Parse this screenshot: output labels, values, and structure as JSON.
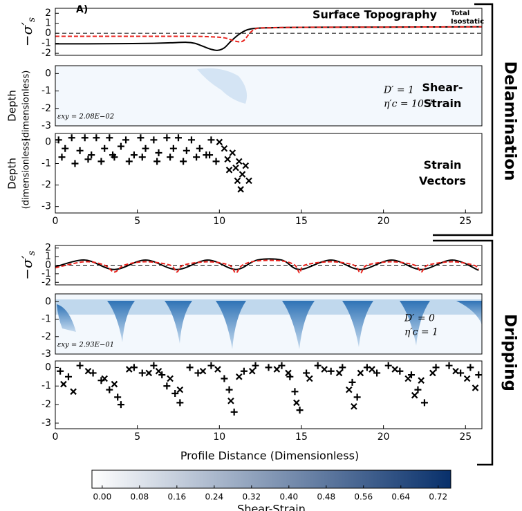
{
  "figure": {
    "panel_label": "A)",
    "x_label": "Profile Distance (Dimensionless)",
    "groups": [
      "Delamination",
      "Dripping"
    ]
  },
  "chart_data": [
    {
      "type": "line",
      "title": "Surface Topography",
      "y_label": "−σ′",
      "y_label_sub": "s",
      "xlim": [
        0,
        26
      ],
      "ylim": [
        -2.2,
        2.5
      ],
      "yticks": [
        -2,
        -1,
        0,
        1,
        2
      ],
      "reference_line": 0,
      "series": [
        {
          "name": "Total",
          "color": "#000000",
          "dash": false,
          "x": [
            0,
            2,
            4,
            6,
            7,
            8,
            8.5,
            9,
            9.5,
            9.9,
            10.3,
            10.7,
            11.2,
            11.7,
            12.2,
            13,
            15,
            20,
            26
          ],
          "values": [
            -1.05,
            -1.05,
            -1.03,
            -1.0,
            -0.95,
            -0.9,
            -1.0,
            -1.3,
            -1.6,
            -1.7,
            -1.45,
            -0.8,
            -0.1,
            0.35,
            0.5,
            0.55,
            0.6,
            0.62,
            0.65
          ]
        },
        {
          "name": "Isostatic",
          "color": "#e8221c",
          "dash": true,
          "x": [
            0,
            4,
            8,
            9.5,
            10.3,
            10.8,
            11.2,
            11.5,
            11.9,
            12.3,
            13,
            15,
            20,
            26
          ],
          "values": [
            -0.3,
            -0.3,
            -0.3,
            -0.35,
            -0.45,
            -0.7,
            -0.85,
            -0.7,
            0.1,
            0.5,
            0.55,
            0.6,
            0.62,
            0.65
          ]
        }
      ]
    },
    {
      "type": "heatmap",
      "y_label": [
        "Depth",
        "(dimensionless)"
      ],
      "xlim": [
        0,
        26
      ],
      "ylim": [
        -3,
        0.45
      ],
      "yticks": [
        -3,
        -2,
        -1,
        0
      ],
      "annotations": [
        "Shear-",
        "Strain"
      ],
      "params": [
        "D′ = 1",
        "η′c = 10⁻²"
      ],
      "max_label": "εxy = 2.08E−02"
    },
    {
      "type": "scatter",
      "y_label": [
        "Depth",
        "(dimensionless)"
      ],
      "xlim": [
        0,
        26
      ],
      "ylim": [
        -3.3,
        0.4
      ],
      "yticks": [
        -3,
        -2,
        -1,
        0
      ],
      "xticks": [
        0,
        5,
        10,
        15,
        20,
        25
      ],
      "annotations": [
        "Strain",
        "Vectors"
      ],
      "markers": [
        {
          "symbol": "plus",
          "x": [
            0.2,
            0.4,
            1,
            1.5,
            1.8,
            2.2,
            2.5,
            3,
            3.3,
            3.5,
            4,
            4.3,
            4.8,
            5.2,
            5.5,
            6,
            6.3,
            6.8,
            7.2,
            7.5,
            8,
            8.3,
            8.8,
            9.2,
            9.5,
            9.8,
            0.6,
            1.2,
            2,
            2.8,
            3.6,
            4.5,
            5.3,
            6.2,
            7,
            7.8,
            8.6,
            9.4
          ],
          "y": [
            0.1,
            -0.7,
            0.2,
            -0.4,
            0.2,
            -0.6,
            0.2,
            -0.3,
            0.2,
            -0.6,
            -0.2,
            0.1,
            -0.6,
            0.2,
            -0.3,
            0.1,
            -0.5,
            0.2,
            -0.3,
            0.2,
            -0.4,
            0.1,
            -0.3,
            -0.6,
            0.1,
            -0.9,
            -0.3,
            -1.0,
            -0.8,
            -0.9,
            -0.7,
            -0.9,
            -0.7,
            -0.9,
            -0.7,
            -0.9,
            -0.7,
            -0.6
          ]
        },
        {
          "symbol": "cross",
          "x": [
            10,
            10.3,
            10.5,
            10.8,
            11,
            11.2,
            11.4,
            11.6,
            10.6,
            11.1,
            11.3,
            11.8
          ],
          "y": [
            0,
            -0.3,
            -0.8,
            -0.5,
            -1.2,
            -0.9,
            -1.5,
            -1.1,
            -1.3,
            -1.8,
            -2.2,
            -1.8
          ]
        }
      ]
    },
    {
      "type": "line",
      "xlim": [
        0,
        26
      ],
      "ylim": [
        -2.3,
        2.3
      ],
      "yticks": [
        -2,
        -1,
        0,
        1,
        2
      ],
      "y_label": "−σ′",
      "y_label_sub": "s",
      "reference_line": 0,
      "series": [
        {
          "color": "#000000",
          "dash": false,
          "x": [
            0,
            1.8,
            3.6,
            5.5,
            7.4,
            9.3,
            11,
            12.3,
            13.8,
            14.9,
            16.8,
            18.6,
            20.5,
            22.3,
            24.2,
            25.8
          ],
          "values": [
            -0.2,
            0.6,
            -0.5,
            0.6,
            -0.5,
            0.6,
            -0.5,
            0.6,
            0.6,
            -0.5,
            0.6,
            -0.5,
            0.6,
            -0.5,
            0.6,
            -0.6
          ]
        },
        {
          "color": "#e8221c",
          "dash": true,
          "x": [
            0,
            1.8,
            3,
            3.6,
            4.2,
            5.5,
            7,
            7.4,
            7.8,
            9.3,
            10.6,
            11,
            11.4,
            12.3,
            13.8,
            14.6,
            14.9,
            15.2,
            16.8,
            18.2,
            18.6,
            19,
            20.5,
            21.9,
            22.3,
            22.7,
            24.2,
            25.5,
            25.8
          ],
          "values": [
            -0.3,
            0.4,
            0,
            -0.8,
            0,
            0.4,
            0,
            -0.8,
            0,
            0.4,
            0,
            -0.9,
            0,
            0.5,
            0.5,
            0,
            -0.9,
            0,
            0.4,
            0,
            -0.9,
            0,
            0.4,
            0,
            -0.8,
            0,
            0.4,
            0,
            -0.5
          ]
        }
      ]
    },
    {
      "type": "heatmap",
      "xlim": [
        0,
        26
      ],
      "ylim": [
        -3,
        0.45
      ],
      "yticks": [
        -3,
        -2,
        -1,
        0
      ],
      "params": [
        "D′ = 0",
        "η′c = 1"
      ],
      "max_label": "εxy = 2.93E−01"
    },
    {
      "type": "scatter",
      "xlim": [
        0,
        26
      ],
      "ylim": [
        -3.3,
        0.35
      ],
      "yticks": [
        -3,
        -2,
        -1,
        0
      ],
      "xticks": [
        0,
        5,
        10,
        15,
        20,
        25
      ],
      "markers": [
        {
          "symbol": "plus",
          "x": [
            0.3,
            0.8,
            1.5,
            2.3,
            2.8,
            3.3,
            3.8,
            4,
            4.8,
            5.3,
            6,
            6.5,
            6.8,
            7.3,
            7.6,
            8.2,
            8.7,
            9.5,
            10.3,
            10.6,
            10.9,
            11.5,
            12.2,
            13,
            13.8,
            14.3,
            14.6,
            14.9,
            15.3,
            16,
            16.8,
            17.5,
            18.1,
            18.4,
            19,
            19.6,
            20.3,
            21,
            21.7,
            22.1,
            22.5,
            23.2,
            24,
            24.7,
            25.3,
            25.8
          ],
          "y": [
            -0.2,
            -0.5,
            0.1,
            -0.3,
            -0.7,
            -1.2,
            -1.6,
            -2.0,
            0,
            -0.3,
            0.1,
            -0.4,
            -1.0,
            -1.4,
            -1.9,
            0,
            -0.3,
            0.1,
            -0.6,
            -1.2,
            -2.4,
            -0.2,
            0.1,
            0,
            0.1,
            -0.5,
            -1.3,
            -2.3,
            -0.3,
            0.1,
            -0.2,
            0,
            -0.8,
            -1.6,
            0,
            -0.3,
            0.1,
            -0.2,
            -0.4,
            -1.2,
            -1.9,
            0,
            0.1,
            -0.3,
            0,
            -0.4
          ]
        },
        {
          "symbol": "cross",
          "x": [
            0.5,
            1.1,
            2,
            3,
            3.6,
            4.5,
            5.7,
            6.3,
            7,
            7.6,
            9,
            9.9,
            10.7,
            11.2,
            12,
            13.5,
            14.2,
            14.7,
            15.5,
            16.4,
            17.3,
            17.9,
            18.2,
            18.6,
            19.3,
            20.7,
            21.5,
            21.9,
            22.3,
            23,
            24.4,
            25.1,
            25.6
          ],
          "y": [
            -0.9,
            -1.3,
            -0.2,
            -0.6,
            -0.9,
            -0.1,
            -0.3,
            -0.2,
            -0.6,
            -1.2,
            -0.2,
            -0.1,
            -1.8,
            -0.5,
            -0.2,
            -0.1,
            -0.3,
            -1.9,
            -0.6,
            -0.1,
            -0.3,
            -1.2,
            -2.1,
            -0.3,
            -0.1,
            -0.1,
            -0.6,
            -1.5,
            -0.7,
            -0.3,
            -0.2,
            -0.6,
            -1.1
          ]
        }
      ]
    },
    {
      "type": "colorbar",
      "label": "Shear-Strain",
      "clim": [
        -0.022,
        0.747
      ],
      "colors": [
        "#ffffff",
        "#08306b"
      ],
      "ticks": [
        {
          "value": 0,
          "label": "0.00"
        },
        {
          "value": 0.08,
          "label": "0.08"
        },
        {
          "value": 0.16,
          "label": "0.16"
        },
        {
          "value": 0.24,
          "label": "0.24"
        },
        {
          "value": 0.32,
          "label": "0.32"
        },
        {
          "value": 0.4,
          "label": "0.40"
        },
        {
          "value": 0.48,
          "label": "0.48"
        },
        {
          "value": 0.56,
          "label": "0.56"
        },
        {
          "value": 0.64,
          "label": "0.64"
        },
        {
          "value": 0.72,
          "label": "0.72"
        }
      ]
    }
  ]
}
